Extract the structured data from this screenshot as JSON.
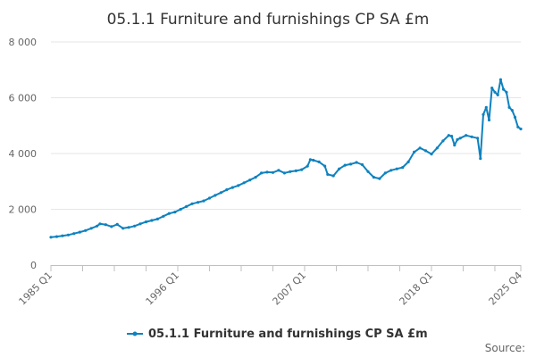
{
  "chart_data": {
    "type": "line",
    "title": "05.1.1 Furniture and furnishings CP SA £m",
    "xlabel": "",
    "ylabel": "",
    "ylim": [
      0,
      8000
    ],
    "y_ticks": [
      {
        "value": 0,
        "label": "0"
      },
      {
        "value": 2000,
        "label": "2 000"
      },
      {
        "value": 4000,
        "label": "4 000"
      },
      {
        "value": 6000,
        "label": "6 000"
      },
      {
        "value": 8000,
        "label": "8 000"
      }
    ],
    "x_range": [
      1985.0,
      2025.75
    ],
    "x_ticks": [
      {
        "value": 1985.0,
        "label": "1985 Q1"
      },
      {
        "value": 1996.0,
        "label": "1996 Q1"
      },
      {
        "value": 2007.0,
        "label": "2007 Q1"
      },
      {
        "value": 2018.0,
        "label": "2018 Q1"
      },
      {
        "value": 2025.75,
        "label": "2025 Q4"
      }
    ],
    "x_minor_ticks": [
      1987.75,
      1990.5,
      1993.25,
      1998.75,
      2001.5,
      2004.25,
      2009.75,
      2012.5,
      2015.25,
      2020.75,
      2023.5
    ],
    "grid": "horizontal",
    "legend_position": "bottom",
    "series": [
      {
        "name": "05.1.1 Furniture and furnishings CP SA £m",
        "color": "#0f82bf",
        "points": [
          [
            "1985 Q1",
            1000
          ],
          [
            "1985 Q3",
            1020
          ],
          [
            "1986 Q1",
            1050
          ],
          [
            "1986 Q3",
            1080
          ],
          [
            "1987 Q1",
            1130
          ],
          [
            "1987 Q3",
            1180
          ],
          [
            "1988 Q1",
            1240
          ],
          [
            "1988 Q3",
            1320
          ],
          [
            "1989 Q1",
            1400
          ],
          [
            "1989 Q2",
            1480
          ],
          [
            "1989 Q4",
            1450
          ],
          [
            "1990 Q2",
            1380
          ],
          [
            "1990 Q4",
            1460
          ],
          [
            "1991 Q2",
            1320
          ],
          [
            "1991 Q4",
            1350
          ],
          [
            "1992 Q2",
            1400
          ],
          [
            "1992 Q4",
            1480
          ],
          [
            "1993 Q2",
            1550
          ],
          [
            "1993 Q4",
            1600
          ],
          [
            "1994 Q2",
            1650
          ],
          [
            "1994 Q4",
            1750
          ],
          [
            "1995 Q2",
            1850
          ],
          [
            "1995 Q4",
            1900
          ],
          [
            "1996 Q2",
            2000
          ],
          [
            "1996 Q4",
            2100
          ],
          [
            "1997 Q2",
            2200
          ],
          [
            "1997 Q4",
            2250
          ],
          [
            "1998 Q2",
            2300
          ],
          [
            "1998 Q4",
            2400
          ],
          [
            "1999 Q2",
            2500
          ],
          [
            "1999 Q4",
            2600
          ],
          [
            "2000 Q2",
            2700
          ],
          [
            "2000 Q4",
            2780
          ],
          [
            "2001 Q2",
            2850
          ],
          [
            "2001 Q4",
            2950
          ],
          [
            "2002 Q2",
            3050
          ],
          [
            "2002 Q4",
            3150
          ],
          [
            "2003 Q2",
            3300
          ],
          [
            "2003 Q4",
            3330
          ],
          [
            "2004 Q2",
            3320
          ],
          [
            "2004 Q4",
            3400
          ],
          [
            "2005 Q2",
            3300
          ],
          [
            "2005 Q4",
            3350
          ],
          [
            "2006 Q2",
            3380
          ],
          [
            "2006 Q4",
            3420
          ],
          [
            "2007 Q2",
            3550
          ],
          [
            "2007 Q3",
            3780
          ],
          [
            "2007 Q4",
            3760
          ],
          [
            "2008 Q2",
            3700
          ],
          [
            "2008 Q4",
            3550
          ],
          [
            "2009 Q1",
            3250
          ],
          [
            "2009 Q3",
            3200
          ],
          [
            "2010 Q1",
            3450
          ],
          [
            "2010 Q3",
            3580
          ],
          [
            "2011 Q1",
            3620
          ],
          [
            "2011 Q3",
            3680
          ],
          [
            "2012 Q1",
            3600
          ],
          [
            "2012 Q3",
            3350
          ],
          [
            "2013 Q1",
            3150
          ],
          [
            "2013 Q3",
            3100
          ],
          [
            "2014 Q1",
            3300
          ],
          [
            "2014 Q3",
            3400
          ],
          [
            "2015 Q1",
            3450
          ],
          [
            "2015 Q3",
            3500
          ],
          [
            "2016 Q1",
            3700
          ],
          [
            "2016 Q3",
            4050
          ],
          [
            "2017 Q1",
            4200
          ],
          [
            "2017 Q3",
            4100
          ],
          [
            "2018 Q1",
            3980
          ],
          [
            "2018 Q3",
            4200
          ],
          [
            "2019 Q1",
            4450
          ],
          [
            "2019 Q3",
            4650
          ],
          [
            "2019 Q4",
            4620
          ],
          [
            "2020 Q1",
            4300
          ],
          [
            "2020 Q2",
            4500
          ],
          [
            "2020 Q3",
            4550
          ],
          [
            "2021 Q1",
            4650
          ],
          [
            "2021 Q3",
            4600
          ],
          [
            "2022 Q1",
            4550
          ],
          [
            "2022 Q2",
            3820
          ],
          [
            "2022 Q3",
            5400
          ],
          [
            "2022 Q4",
            5650
          ],
          [
            "2023 Q1",
            5200
          ],
          [
            "2023 Q2",
            6350
          ],
          [
            "2023 Q3",
            6200
          ],
          [
            "2023 Q4",
            6100
          ],
          [
            "2024 Q1",
            6650
          ],
          [
            "2024 Q2",
            6300
          ],
          [
            "2024 Q3",
            6200
          ],
          [
            "2024 Q4",
            5650
          ],
          [
            "2025 Q1",
            5550
          ],
          [
            "2025 Q2",
            5300
          ],
          [
            "2025 Q3",
            4950
          ],
          [
            "2025 Q4",
            4880
          ]
        ]
      }
    ],
    "source_label": "Source:"
  }
}
